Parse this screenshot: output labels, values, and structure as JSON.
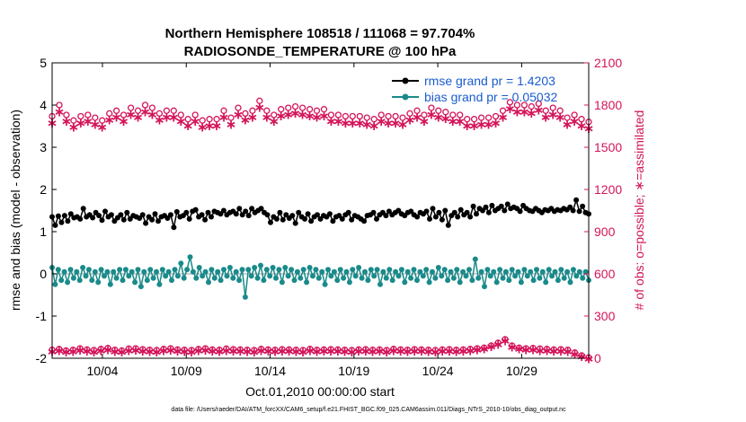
{
  "chart_data": {
    "type": "line",
    "title": "Northern Hemisphere 108518 / 111068 = 97.704%",
    "subtitle": "RADIOSONDE_TEMPERATURE @ 100 hPa",
    "xlabel": "Oct.01,2010 00:00:00 start",
    "ylabel": "rmse and bias (model - observation)",
    "ylabel_right": "# of obs: o=possible; ∗=assimilated",
    "footnote": "data file: /Users/raeder/DAI/ATM_forcXX/CAM6_setup/f.e21.FHIST_BGC.f09_025.CAM6assim.011/Diags_NTrS_2010-10/obs_diag_output.nc",
    "x_ticks": [
      "10/04",
      "10/09",
      "10/14",
      "10/19",
      "10/24",
      "10/29"
    ],
    "y_ticks": [
      "-2",
      "-1",
      "0",
      "1",
      "2",
      "3",
      "4",
      "5"
    ],
    "y2_ticks": [
      "0",
      "300",
      "600",
      "900",
      "1200",
      "1500",
      "1800",
      "2100"
    ],
    "x_range_days": [
      0,
      32
    ],
    "ylim": [
      -2,
      5
    ],
    "y2lim": [
      0,
      2100
    ],
    "grid": false,
    "legend": [
      {
        "label": "rmse grand pr = 1.4203",
        "color": "#000000"
      },
      {
        "label": "bias grand pr = 0.05032",
        "color": "#1a8a8a"
      }
    ],
    "colors": {
      "rmse": "#000000",
      "bias": "#1a8a8a",
      "count": "#d4145a",
      "zero_line": "#bfbfbf"
    },
    "series": [
      {
        "name": "rmse",
        "axis": "left",
        "values": [
          1.35,
          1.15,
          1.37,
          1.22,
          1.38,
          1.25,
          1.42,
          1.33,
          1.35,
          1.3,
          1.55,
          1.35,
          1.4,
          1.33,
          1.45,
          1.38,
          1.27,
          1.48,
          1.35,
          1.4,
          1.25,
          1.33,
          1.4,
          1.28,
          1.45,
          1.3,
          1.38,
          1.35,
          1.32,
          1.4,
          1.2,
          1.35,
          1.28,
          1.42,
          1.25,
          1.35,
          1.38,
          1.32,
          1.4,
          1.1,
          1.47,
          1.35,
          1.38,
          1.45,
          1.3,
          1.48,
          1.52,
          1.35,
          1.4,
          1.28,
          1.45,
          1.35,
          1.48,
          1.45,
          1.42,
          1.5,
          1.4,
          1.45,
          1.48,
          1.42,
          1.55,
          1.4,
          1.48,
          1.38,
          1.55,
          1.45,
          1.5,
          1.55,
          1.45,
          1.4,
          1.22,
          1.35,
          1.3,
          1.45,
          1.28,
          1.4,
          1.32,
          1.38,
          1.2,
          1.45,
          1.35,
          1.3,
          1.42,
          1.25,
          1.35,
          1.4,
          1.3,
          1.38,
          1.35,
          1.42,
          1.25,
          1.35,
          1.38,
          1.3,
          1.4,
          1.45,
          1.28,
          1.38,
          1.35,
          1.3,
          1.25,
          1.38,
          1.4,
          1.45,
          1.3,
          1.4,
          1.45,
          1.38,
          1.48,
          1.4,
          1.45,
          1.5,
          1.42,
          1.38,
          1.45,
          1.48,
          1.4,
          1.35,
          1.45,
          1.42,
          1.48,
          1.3,
          1.55,
          1.35,
          1.45,
          1.28,
          1.5,
          1.15,
          1.38,
          1.45,
          1.35,
          1.52,
          1.4,
          1.45,
          1.35,
          1.6,
          1.42,
          1.55,
          1.5,
          1.58,
          1.45,
          1.62,
          1.5,
          1.55,
          1.6,
          1.5,
          1.65,
          1.55,
          1.58,
          1.55,
          1.48,
          1.62,
          1.55,
          1.5,
          1.48,
          1.55,
          1.5,
          1.45,
          1.52,
          1.5,
          1.55,
          1.48,
          1.52,
          1.5,
          1.55,
          1.52,
          1.58,
          1.5,
          1.75,
          1.48,
          1.6,
          1.45,
          1.42
        ]
      },
      {
        "name": "bias",
        "axis": "left",
        "values": [
          0.15,
          -0.25,
          0.1,
          -0.15,
          0.05,
          -0.2,
          0.1,
          -0.1,
          0.05,
          -0.15,
          0.15,
          -0.05,
          0.1,
          -0.15,
          0.05,
          -0.2,
          0.1,
          -0.05,
          0.05,
          -0.25,
          0.05,
          -0.1,
          0.1,
          -0.15,
          0.1,
          -0.05,
          0.05,
          -0.2,
          0.1,
          -0.3,
          0.05,
          -0.15,
          0.1,
          -0.1,
          0.05,
          -0.25,
          0.1,
          -0.05,
          0.05,
          -0.15,
          0.1,
          -0.05,
          0.25,
          -0.1,
          0.1,
          0.4,
          0.05,
          -0.1,
          0.15,
          -0.05,
          0.05,
          -0.2,
          0.1,
          -0.1,
          0.05,
          -0.15,
          0.1,
          -0.05,
          0.15,
          -0.1,
          0.05,
          -0.15,
          0.1,
          -0.55,
          0.1,
          -0.05,
          0.15,
          -0.1,
          0.2,
          -0.15,
          0.1,
          -0.05,
          0.15,
          -0.1,
          0.1,
          -0.2,
          0.15,
          -0.05,
          0.1,
          -0.15,
          0.05,
          -0.1,
          0.1,
          -0.2,
          0.15,
          -0.05,
          0.1,
          -0.1,
          0.05,
          -0.25,
          0.1,
          -0.05,
          0.05,
          -0.15,
          0.1,
          -0.1,
          0.05,
          -0.2,
          0.1,
          -0.05,
          0.15,
          -0.1,
          0.05,
          -0.15,
          0.1,
          -0.05,
          0.1,
          -0.25,
          0.05,
          -0.1,
          0.1,
          -0.15,
          0.05,
          -0.05,
          0.1,
          -0.2,
          0.05,
          -0.1,
          0.1,
          -0.15,
          0.05,
          -0.05,
          0.1,
          -0.2,
          0.05,
          -0.1,
          0.15,
          -0.05,
          0.1,
          -0.15,
          0.05,
          -0.1,
          0.1,
          -0.2,
          0.05,
          -0.05,
          0.1,
          -0.15,
          0.35,
          -0.1,
          0.05,
          -0.3,
          0.1,
          -0.05,
          0.05,
          -0.2,
          0.1,
          -0.1,
          0.05,
          -0.15,
          0.1,
          -0.05,
          0.05,
          -0.2,
          0.1,
          -0.05,
          0.05,
          -0.15,
          0.1,
          -0.1,
          0.05,
          -0.2,
          0.1,
          -0.05,
          0.05,
          -0.15,
          0.1,
          -0.1,
          0.05,
          -0.2,
          0.1,
          -0.05,
          0.05,
          -0.1,
          0.05,
          -0.15
        ]
      },
      {
        "name": "possible",
        "axis": "right",
        "marker": "o",
        "values": [
          1720,
          1800,
          1730,
          1690,
          1720,
          1730,
          1710,
          1690,
          1740,
          1760,
          1730,
          1780,
          1760,
          1800,
          1780,
          1740,
          1760,
          1760,
          1730,
          1700,
          1730,
          1690,
          1700,
          1700,
          1760,
          1710,
          1780,
          1740,
          1760,
          1830,
          1760,
          1730,
          1770,
          1780,
          1790,
          1780,
          1770,
          1760,
          1770,
          1730,
          1730,
          1720,
          1720,
          1720,
          1710,
          1700,
          1730,
          1720,
          1720,
          1710,
          1740,
          1760,
          1730,
          1780,
          1760,
          1750,
          1730,
          1730,
          1700,
          1700,
          1710,
          1710,
          1720,
          1760,
          1820,
          1800,
          1800,
          1790,
          1810,
          1760,
          1780,
          1760,
          1710,
          1730,
          1700,
          1680
        ]
      },
      {
        "name": "assimilated",
        "axis": "right",
        "marker": "*",
        "values": [
          1680,
          1760,
          1690,
          1650,
          1680,
          1690,
          1670,
          1650,
          1700,
          1720,
          1690,
          1740,
          1720,
          1760,
          1740,
          1700,
          1720,
          1720,
          1690,
          1660,
          1690,
          1650,
          1660,
          1660,
          1720,
          1670,
          1740,
          1700,
          1720,
          1790,
          1720,
          1690,
          1730,
          1740,
          1750,
          1740,
          1730,
          1720,
          1730,
          1690,
          1690,
          1680,
          1680,
          1680,
          1670,
          1660,
          1690,
          1680,
          1680,
          1670,
          1700,
          1720,
          1690,
          1740,
          1720,
          1710,
          1690,
          1690,
          1660,
          1660,
          1670,
          1670,
          1680,
          1720,
          1780,
          1760,
          1760,
          1750,
          1770,
          1720,
          1740,
          1720,
          1670,
          1690,
          1660,
          1640
        ]
      },
      {
        "name": "possible_low",
        "axis": "right",
        "marker": "o",
        "values": [
          60,
          65,
          55,
          60,
          70,
          62,
          58,
          66,
          72,
          60,
          55,
          68,
          70,
          64,
          60,
          58,
          66,
          70,
          62,
          60,
          58,
          65,
          70,
          62,
          60,
          68,
          64,
          62,
          60,
          58,
          66,
          62,
          60,
          64,
          62,
          60,
          58,
          66,
          60,
          62,
          64,
          62,
          60,
          58,
          62,
          64,
          60,
          62,
          58,
          66,
          62,
          60,
          64,
          62,
          60,
          58,
          62,
          64,
          60,
          62,
          66,
          70,
          75,
          90,
          110,
          135,
          90,
          75,
          70,
          72,
          68,
          66,
          62,
          64,
          60,
          40,
          20,
          5
        ]
      },
      {
        "name": "assimilated_low",
        "axis": "right",
        "marker": "*",
        "values": [
          55,
          60,
          50,
          55,
          65,
          58,
          52,
          60,
          66,
          55,
          50,
          62,
          64,
          58,
          54,
          52,
          60,
          64,
          56,
          54,
          52,
          60,
          64,
          56,
          54,
          62,
          58,
          56,
          54,
          52,
          60,
          56,
          54,
          58,
          56,
          54,
          52,
          60,
          54,
          56,
          58,
          56,
          54,
          52,
          56,
          58,
          54,
          56,
          52,
          60,
          56,
          54,
          58,
          56,
          54,
          52,
          56,
          58,
          54,
          56,
          60,
          66,
          72,
          88,
          105,
          130,
          86,
          72,
          66,
          68,
          62,
          60,
          56,
          58,
          54,
          36,
          18,
          3
        ]
      }
    ]
  }
}
